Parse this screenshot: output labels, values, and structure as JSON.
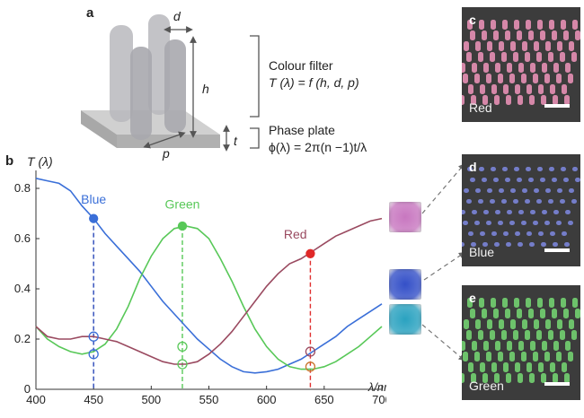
{
  "panel_a": {
    "label": "a",
    "d": "d",
    "h": "h",
    "p": "p",
    "t": "t",
    "colour_filter": "Colour filter",
    "colour_filter_eq": "T (λ) = f (h, d, p)",
    "phase_plate": "Phase plate",
    "phase_plate_eq": "ϕ(λ) = 2π(n −1)t/λ"
  },
  "panel_b": {
    "label": "b"
  },
  "chart_data": {
    "type": "line",
    "ylabel": "T (λ)",
    "xlabel": "λ/nm",
    "xlim": [
      400,
      700
    ],
    "ylim": [
      0,
      0.85
    ],
    "xticks": [
      400,
      450,
      500,
      550,
      600,
      650,
      700
    ],
    "yticks": [
      0,
      0.2,
      0.4,
      0.6,
      0.8
    ],
    "grid": false,
    "series": [
      {
        "name": "Blue",
        "color": "#3a6fd8",
        "x": [
          400,
          410,
          420,
          430,
          440,
          450,
          460,
          470,
          480,
          490,
          500,
          510,
          520,
          530,
          540,
          550,
          560,
          570,
          580,
          590,
          600,
          610,
          620,
          630,
          640,
          650,
          660,
          670,
          680,
          690,
          700
        ],
        "y": [
          0.84,
          0.83,
          0.82,
          0.79,
          0.73,
          0.68,
          0.62,
          0.57,
          0.52,
          0.47,
          0.41,
          0.35,
          0.3,
          0.25,
          0.2,
          0.16,
          0.12,
          0.09,
          0.07,
          0.065,
          0.07,
          0.08,
          0.1,
          0.12,
          0.15,
          0.18,
          0.21,
          0.25,
          0.28,
          0.31,
          0.34
        ]
      },
      {
        "name": "Green",
        "color": "#58c858",
        "x": [
          400,
          410,
          420,
          430,
          440,
          450,
          460,
          470,
          480,
          490,
          500,
          510,
          520,
          530,
          540,
          550,
          560,
          570,
          580,
          590,
          600,
          610,
          620,
          630,
          640,
          650,
          660,
          670,
          680,
          690,
          700
        ],
        "y": [
          0.25,
          0.2,
          0.17,
          0.15,
          0.14,
          0.15,
          0.18,
          0.24,
          0.33,
          0.44,
          0.53,
          0.6,
          0.64,
          0.65,
          0.64,
          0.6,
          0.52,
          0.43,
          0.33,
          0.24,
          0.17,
          0.12,
          0.09,
          0.08,
          0.08,
          0.09,
          0.11,
          0.14,
          0.17,
          0.21,
          0.25
        ]
      },
      {
        "name": "Red",
        "color": "#9a4a60",
        "x": [
          400,
          410,
          420,
          430,
          440,
          450,
          460,
          470,
          480,
          490,
          500,
          510,
          520,
          530,
          540,
          550,
          560,
          570,
          580,
          590,
          600,
          610,
          620,
          630,
          640,
          650,
          660,
          670,
          680,
          690,
          700
        ],
        "y": [
          0.25,
          0.21,
          0.2,
          0.2,
          0.21,
          0.21,
          0.2,
          0.19,
          0.17,
          0.15,
          0.13,
          0.11,
          0.1,
          0.1,
          0.11,
          0.14,
          0.18,
          0.23,
          0.29,
          0.35,
          0.41,
          0.46,
          0.5,
          0.52,
          0.55,
          0.58,
          0.61,
          0.63,
          0.65,
          0.67,
          0.68
        ]
      }
    ],
    "markers": [
      {
        "series": "Blue",
        "x": 450,
        "y": 0.68,
        "filled": true
      },
      {
        "series": "Green",
        "x": 527,
        "y": 0.65,
        "filled": true
      },
      {
        "series": "Red",
        "x": 638,
        "y": 0.54,
        "filled": true
      },
      {
        "series": "Blue",
        "x": 450,
        "y": 0.21,
        "filled": false,
        "color": "#3a6fd8"
      },
      {
        "series": "Blue",
        "x": 450,
        "y": 0.14,
        "filled": false,
        "color": "#3a6fd8"
      },
      {
        "series": "Green",
        "x": 527,
        "y": 0.17,
        "filled": false,
        "color": "#58c858"
      },
      {
        "series": "Green",
        "x": 527,
        "y": 0.1,
        "filled": false,
        "color": "#58c858"
      },
      {
        "series": "Red",
        "x": 638,
        "y": 0.15,
        "filled": false,
        "color": "#9a4a60"
      },
      {
        "series": "Red",
        "x": 638,
        "y": 0.09,
        "filled": false,
        "color": "#c9772e"
      }
    ],
    "annotations": [
      {
        "text": "Blue",
        "color": "#3a6fd8"
      },
      {
        "text": "Green",
        "color": "#58c858"
      },
      {
        "text": "Red",
        "color": "#9a4a60"
      }
    ]
  },
  "sem_panels": [
    {
      "panel": "c",
      "label": "Red",
      "color": "#e58fb4"
    },
    {
      "panel": "d",
      "label": "Blue",
      "color": "#7a84d8"
    },
    {
      "panel": "e",
      "label": "Green",
      "color": "#72d070"
    }
  ],
  "swatches": [
    {
      "name": "red-swatch",
      "color": "#c877c0"
    },
    {
      "name": "blue-swatch",
      "color": "#3450c8"
    },
    {
      "name": "green-swatch",
      "color": "#2aa2c0"
    }
  ]
}
